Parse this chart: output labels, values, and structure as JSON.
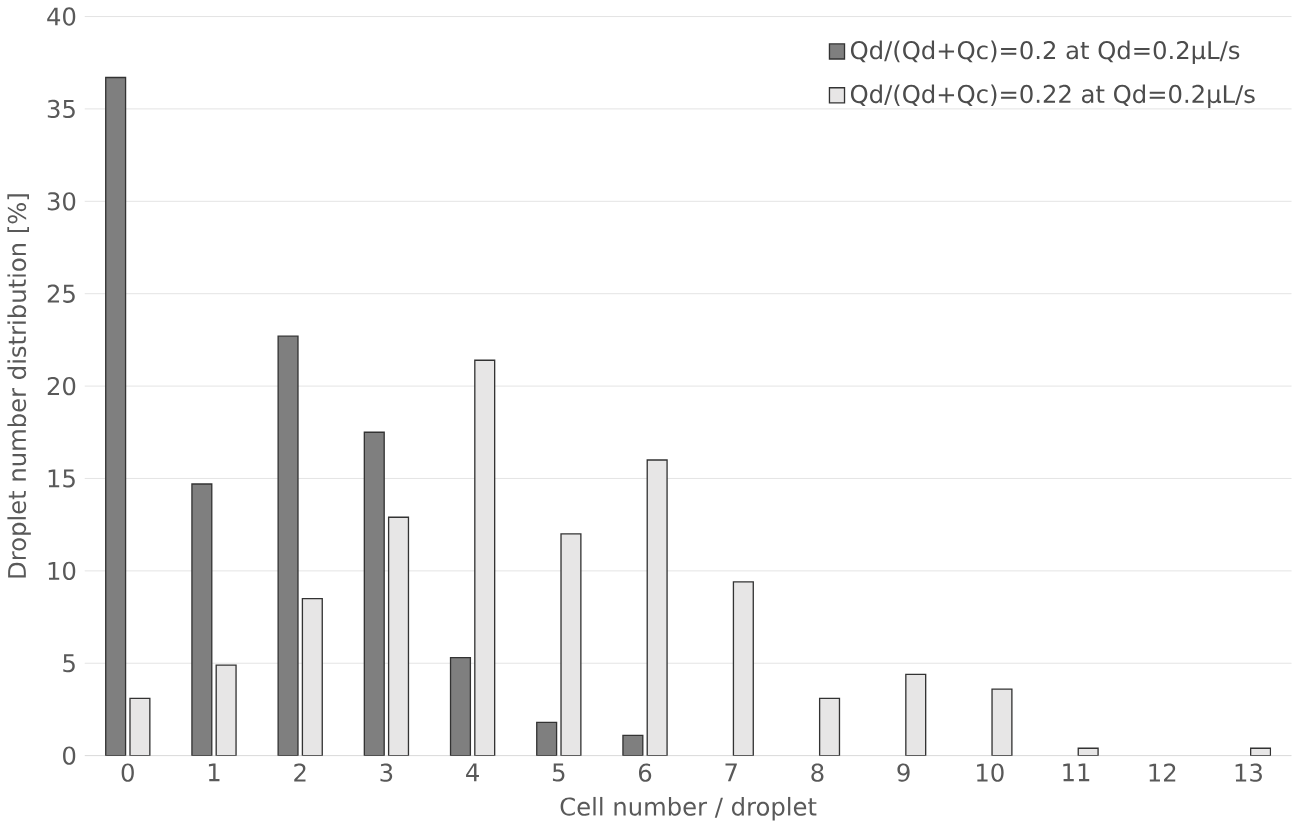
{
  "chart_data": {
    "type": "bar",
    "xlabel": "Cell number / droplet",
    "ylabel": "Droplet number distribution [%]",
    "categories": [
      "0",
      "1",
      "2",
      "3",
      "4",
      "5",
      "6",
      "7",
      "8",
      "9",
      "10",
      "11",
      "12",
      "13"
    ],
    "series": [
      {
        "name": "Qd/(Qd+Qc)=0.2 at Qd=0.2µL/s",
        "color": "#7f7f7f",
        "values": [
          36.7,
          14.7,
          22.7,
          17.5,
          5.3,
          1.8,
          1.1,
          null,
          null,
          null,
          null,
          null,
          null,
          null
        ]
      },
      {
        "name": "Qd/(Qd+Qc)=0.22 at Qd=0.2µL/s",
        "color": "#e7e6e6",
        "values": [
          3.1,
          4.9,
          8.5,
          12.9,
          21.4,
          12.0,
          16.0,
          9.4,
          3.1,
          4.4,
          3.6,
          0.4,
          null,
          0.4
        ]
      }
    ],
    "ylim": [
      0,
      40
    ],
    "yticks": [
      0,
      5,
      10,
      15,
      20,
      25,
      30,
      35,
      40
    ],
    "grid": "y",
    "legend": "top right"
  }
}
